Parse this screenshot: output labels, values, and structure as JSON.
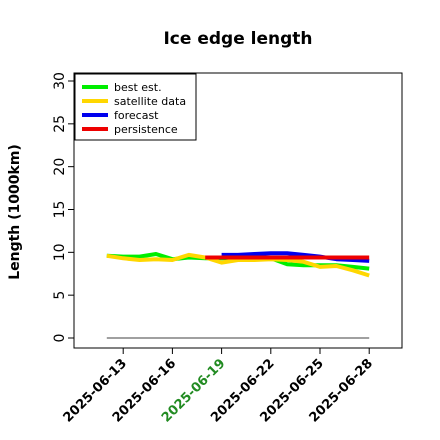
{
  "chart_data": {
    "type": "line",
    "title": "Ice edge length",
    "ylabel": "Length (1000km)",
    "xlabel": "",
    "ylim": [
      0,
      30
    ],
    "yticks": [
      0,
      5,
      10,
      15,
      20,
      25,
      30
    ],
    "xlim": [
      "2025-06-10",
      "2025-06-30"
    ],
    "xticks": [
      "2025-06-13",
      "2025-06-16",
      "2025-06-19",
      "2025-06-22",
      "2025-06-25",
      "2025-06-28"
    ],
    "highlight_tick": "2025-06-19",
    "highlight_color": "#228b22",
    "grid": false,
    "legend_position": "top-left",
    "series": [
      {
        "name": "best est.",
        "color": "#00ee00",
        "x": [
          "2025-06-12",
          "2025-06-13",
          "2025-06-14",
          "2025-06-15",
          "2025-06-16",
          "2025-06-17",
          "2025-06-18",
          "2025-06-19",
          "2025-06-20",
          "2025-06-21",
          "2025-06-22",
          "2025-06-23",
          "2025-06-24",
          "2025-06-25",
          "2025-06-26",
          "2025-06-27",
          "2025-06-28"
        ],
        "values": [
          9.6,
          9.5,
          9.5,
          9.8,
          9.2,
          9.4,
          9.3,
          9.3,
          9.3,
          9.4,
          9.3,
          8.6,
          8.5,
          8.5,
          8.5,
          8.3,
          8.1
        ]
      },
      {
        "name": "satellite data",
        "color": "#ffd700",
        "x": [
          "2025-06-12",
          "2025-06-13",
          "2025-06-14",
          "2025-06-15",
          "2025-06-16",
          "2025-06-17",
          "2025-06-18",
          "2025-06-19",
          "2025-06-20",
          "2025-06-21",
          "2025-06-22",
          "2025-06-23",
          "2025-06-24",
          "2025-06-25",
          "2025-06-26",
          "2025-06-27",
          "2025-06-28"
        ],
        "values": [
          9.6,
          9.3,
          9.1,
          9.2,
          9.1,
          9.7,
          9.4,
          8.8,
          9.1,
          9.1,
          9.2,
          9.1,
          8.9,
          8.3,
          8.4,
          7.9,
          7.3
        ]
      },
      {
        "name": "forecast",
        "color": "#0000ee",
        "x": [
          "2025-06-19",
          "2025-06-20",
          "2025-06-21",
          "2025-06-22",
          "2025-06-23",
          "2025-06-24",
          "2025-06-25",
          "2025-06-26",
          "2025-06-27",
          "2025-06-28"
        ],
        "values": [
          9.7,
          9.7,
          9.8,
          9.9,
          9.9,
          9.7,
          9.5,
          9.2,
          9.1,
          9.0
        ]
      },
      {
        "name": "persistence",
        "color": "#ee0000",
        "x": [
          "2025-06-18",
          "2025-06-19",
          "2025-06-20",
          "2025-06-21",
          "2025-06-22",
          "2025-06-23",
          "2025-06-24",
          "2025-06-25",
          "2025-06-26",
          "2025-06-27",
          "2025-06-28"
        ],
        "values": [
          9.4,
          9.4,
          9.4,
          9.4,
          9.4,
          9.4,
          9.4,
          9.4,
          9.4,
          9.4,
          9.4
        ]
      }
    ],
    "baseline": {
      "color": "#808080",
      "x": [
        "2025-06-12",
        "2025-06-28"
      ],
      "values": [
        0,
        0
      ]
    }
  }
}
